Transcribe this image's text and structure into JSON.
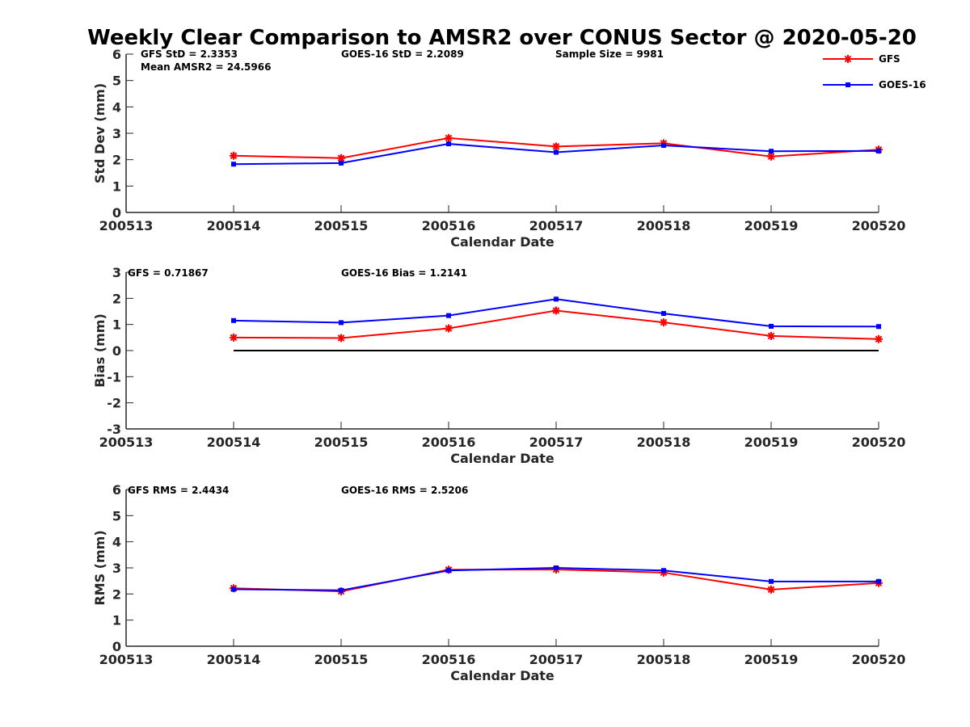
{
  "chart_data": {
    "title": "Weekly Clear Comparison to AMSR2 over CONUS Sector @ 2020-05-20",
    "legend": {
      "placement": "top-right",
      "entries": [
        {
          "name": "GFS",
          "color": "#ff0000",
          "marker": "asterisk"
        },
        {
          "name": "GOES-16",
          "color": "#0000ff",
          "marker": "square"
        }
      ]
    },
    "panels": [
      {
        "type": "line",
        "xlabel": "Calendar Date",
        "ylabel": "Std Dev (mm)",
        "x_ticks": [
          "200513",
          "200514",
          "200515",
          "200516",
          "200517",
          "200518",
          "200519",
          "200520"
        ],
        "y_ticks": [
          "0",
          "1",
          "2",
          "3",
          "4",
          "5",
          "6"
        ],
        "ylim": [
          0,
          6
        ],
        "annotations": [
          "GFS StD = 2.3353",
          "GOES-16 StD = 2.2089",
          "Sample Size = 9981",
          "Mean AMSR2 = 24.5966"
        ],
        "zero_line": false,
        "series": [
          {
            "name": "GFS",
            "color": "#ff0000",
            "marker": "asterisk",
            "x": [
              "200514",
              "200515",
              "200516",
              "200517",
              "200518",
              "200519",
              "200520"
            ],
            "values": [
              2.15,
              2.06,
              2.82,
              2.5,
              2.62,
              2.12,
              2.38
            ]
          },
          {
            "name": "GOES-16",
            "color": "#0000ff",
            "marker": "square",
            "x": [
              "200514",
              "200515",
              "200516",
              "200517",
              "200518",
              "200519",
              "200520"
            ],
            "values": [
              1.83,
              1.87,
              2.6,
              2.28,
              2.54,
              2.32,
              2.33
            ]
          }
        ]
      },
      {
        "type": "line",
        "xlabel": "Calendar Date",
        "ylabel": "Bias (mm)",
        "x_ticks": [
          "200513",
          "200514",
          "200515",
          "200516",
          "200517",
          "200518",
          "200519",
          "200520"
        ],
        "y_ticks": [
          "-3",
          "-2",
          "-1",
          "0",
          "1",
          "2",
          "3"
        ],
        "ylim": [
          -3,
          3
        ],
        "annotations": [
          "GFS = 0.71867",
          "GOES-16 Bias  = 1.2141"
        ],
        "zero_line": true,
        "series": [
          {
            "name": "GFS",
            "color": "#ff0000",
            "marker": "asterisk",
            "x": [
              "200514",
              "200515",
              "200516",
              "200517",
              "200518",
              "200519",
              "200520"
            ],
            "values": [
              0.5,
              0.48,
              0.85,
              1.53,
              1.08,
              0.56,
              0.44
            ]
          },
          {
            "name": "GOES-16",
            "color": "#0000ff",
            "marker": "square",
            "x": [
              "200514",
              "200515",
              "200516",
              "200517",
              "200518",
              "200519",
              "200520"
            ],
            "values": [
              1.15,
              1.07,
              1.34,
              1.97,
              1.42,
              0.93,
              0.92
            ]
          }
        ]
      },
      {
        "type": "line",
        "xlabel": "Calendar Date",
        "ylabel": "RMS (mm)",
        "x_ticks": [
          "200513",
          "200514",
          "200515",
          "200516",
          "200517",
          "200518",
          "200519",
          "200520"
        ],
        "y_ticks": [
          "0",
          "1",
          "2",
          "3",
          "4",
          "5",
          "6"
        ],
        "ylim": [
          0,
          6
        ],
        "annotations": [
          "GFS RMS = 2.4434",
          "GOES-16 RMS = 2.5206"
        ],
        "zero_line": false,
        "series": [
          {
            "name": "GFS",
            "color": "#ff0000",
            "marker": "asterisk",
            "x": [
              "200514",
              "200515",
              "200516",
              "200517",
              "200518",
              "200519",
              "200520"
            ],
            "values": [
              2.22,
              2.1,
              2.93,
              2.94,
              2.82,
              2.17,
              2.42
            ]
          },
          {
            "name": "GOES-16",
            "color": "#0000ff",
            "marker": "square",
            "x": [
              "200514",
              "200515",
              "200516",
              "200517",
              "200518",
              "200519",
              "200520"
            ],
            "values": [
              2.18,
              2.14,
              2.9,
              3.0,
              2.9,
              2.48,
              2.48
            ]
          }
        ]
      }
    ]
  }
}
